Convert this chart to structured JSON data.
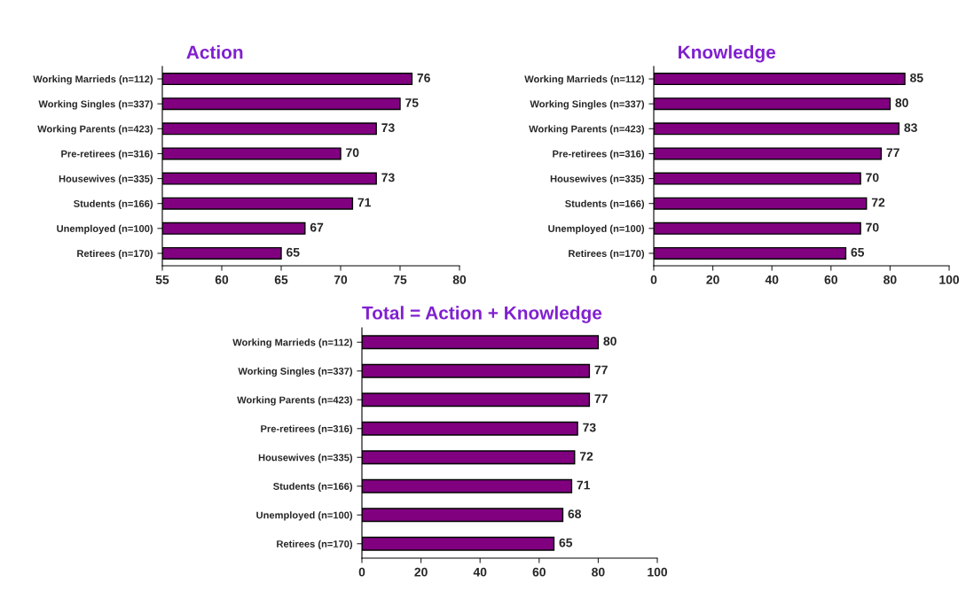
{
  "chart_data": [
    {
      "type": "bar",
      "orientation": "horizontal",
      "title": "Action",
      "categories": [
        "Working Marrieds (n=112)",
        "Working Singles (n=337)",
        "Working Parents (n=423)",
        "Pre-retirees (n=316)",
        "Housewives (n=335)",
        "Students (n=166)",
        "Unemployed (n=100)",
        "Retirees (n=170)"
      ],
      "values": [
        76,
        75,
        73,
        70,
        73,
        71,
        67,
        65
      ],
      "color": "#800080",
      "xlim": [
        55,
        80
      ],
      "xticks": [
        55,
        60,
        65,
        70,
        75,
        80
      ],
      "data_labels": true,
      "grid": false,
      "legend": false
    },
    {
      "type": "bar",
      "orientation": "horizontal",
      "title": "Knowledge",
      "categories": [
        "Working Marrieds (n=112)",
        "Working Singles (n=337)",
        "Working Parents (n=423)",
        "Pre-retirees (n=316)",
        "Housewives (n=335)",
        "Students (n=166)",
        "Unemployed (n=100)",
        "Retirees (n=170)"
      ],
      "values": [
        85,
        80,
        83,
        77,
        70,
        72,
        70,
        65
      ],
      "color": "#800080",
      "xlim": [
        0,
        100
      ],
      "xticks": [
        0,
        20,
        40,
        60,
        80,
        100
      ],
      "data_labels": true,
      "grid": false,
      "legend": false
    },
    {
      "type": "bar",
      "orientation": "horizontal",
      "title": "Total = Action + Knowledge",
      "categories": [
        "Working Marrieds (n=112)",
        "Working Singles (n=337)",
        "Working Parents (n=423)",
        "Pre-retirees (n=316)",
        "Housewives (n=335)",
        "Students (n=166)",
        "Unemployed (n=100)",
        "Retirees (n=170)"
      ],
      "values": [
        80,
        77,
        77,
        73,
        72,
        71,
        68,
        65
      ],
      "color": "#800080",
      "xlim": [
        0,
        100
      ],
      "xticks": [
        0,
        20,
        40,
        60,
        80,
        100
      ],
      "data_labels": true,
      "grid": false,
      "legend": false
    }
  ]
}
